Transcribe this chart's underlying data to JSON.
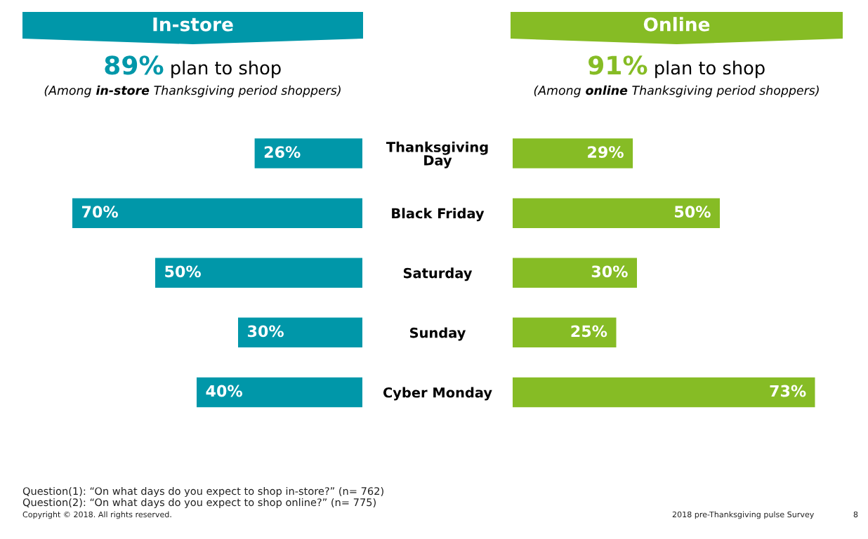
{
  "chart_data": [
    {
      "type": "bar",
      "orientation": "horizontal",
      "title": "In-store",
      "subtitle": "89% plan to shop",
      "categories": [
        "Thanksgiving\nDay",
        "Black Friday",
        "Saturday",
        "Sunday",
        "Cyber Monday"
      ],
      "series": [
        {
          "color": "#0097a9",
          "values": [
            26,
            70,
            50,
            30,
            40
          ],
          "value_labels": [
            "26%",
            "70%",
            "50%",
            "30%",
            "40%"
          ]
        }
      ],
      "tick_labels": "y",
      "annotations": [
        "(Among in-store Thanksgiving period shoppers)",
        "Question(1): “On what days do you expect to shop in-store?” (n= 762)",
        "Question(2): “On what days do you expect to shop online?” (n= 775)",
        "Copyright © 2018. All rights reserved."
      ]
    },
    {
      "type": "bar",
      "orientation": "horizontal",
      "title": "Online",
      "subtitle": "91% plan to shop",
      "categories": [
        null,
        null,
        null,
        null,
        null
      ],
      "series": [
        {
          "color": "#86bc25",
          "values": [
            29,
            50,
            30,
            25,
            73
          ],
          "value_labels": [
            "29%",
            "50%",
            "30%",
            "25%",
            "73%"
          ]
        }
      ],
      "tick_labels": false,
      "annotations": [
        "(Among online Thanksgiving period shoppers)",
        "2018 pre-Thanksgiving pulse Survey",
        "8"
      ]
    }
  ]
}
